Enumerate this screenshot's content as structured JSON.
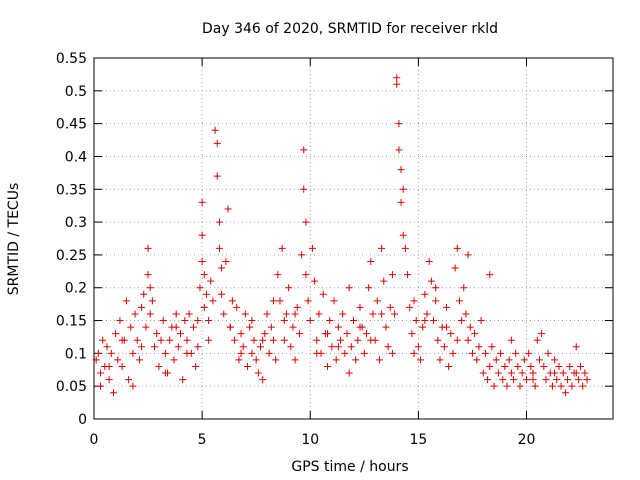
{
  "chart_data": {
    "type": "scatter",
    "title": "Day 346 of 2020, SRMTID for receiver rkld",
    "xlabel": "GPS time / hours",
    "ylabel": "SRMTID / TECUs",
    "xlim": [
      0,
      24
    ],
    "ylim": [
      0,
      0.55
    ],
    "xticks": [
      0,
      5,
      10,
      15,
      20
    ],
    "xtick_labels": [
      "0",
      "5",
      "10",
      "15",
      "20"
    ],
    "yticks": [
      0,
      0.05,
      0.1,
      0.15,
      0.2,
      0.25,
      0.3,
      0.35,
      0.4,
      0.45,
      0.5,
      0.55
    ],
    "ytick_labels": [
      "0",
      "0.05",
      "0.1",
      "0.15",
      "0.2",
      "0.25",
      "0.3",
      "0.35",
      "0.4",
      "0.45",
      "0.5",
      "0.55"
    ],
    "grid": true,
    "marker": "+",
    "series_color": "#e00000",
    "series": [
      {
        "name": "SRMTID",
        "x": [
          0.1,
          0.2,
          0.3,
          0.4,
          0.5,
          0.6,
          0.7,
          0.8,
          0.9,
          1.0,
          1.1,
          1.2,
          1.3,
          1.4,
          1.5,
          1.6,
          1.7,
          1.8,
          1.9,
          2.0,
          2.1,
          2.2,
          2.3,
          2.4,
          2.5,
          2.5,
          2.6,
          2.6,
          2.7,
          2.8,
          2.9,
          3.0,
          3.1,
          3.2,
          3.3,
          3.4,
          3.5,
          3.6,
          3.7,
          3.8,
          3.9,
          4.0,
          4.1,
          4.2,
          4.3,
          4.4,
          4.5,
          4.6,
          4.7,
          4.8,
          4.9,
          5.0,
          5.0,
          5.0,
          5.1,
          5.1,
          5.2,
          5.3,
          5.4,
          5.5,
          5.6,
          5.7,
          5.7,
          5.8,
          5.8,
          5.9,
          5.9,
          6.0,
          6.1,
          6.2,
          6.3,
          6.4,
          6.5,
          6.6,
          6.7,
          6.8,
          6.9,
          7.0,
          7.1,
          7.2,
          7.3,
          7.4,
          7.5,
          7.6,
          7.7,
          7.8,
          7.9,
          8.0,
          8.1,
          8.2,
          8.3,
          8.4,
          8.5,
          8.6,
          8.7,
          8.8,
          8.8,
          8.9,
          9.0,
          9.1,
          9.2,
          9.3,
          9.4,
          9.5,
          9.6,
          9.7,
          9.7,
          9.8,
          9.8,
          9.9,
          10.0,
          10.1,
          10.2,
          10.3,
          10.4,
          10.5,
          10.6,
          10.7,
          10.8,
          10.9,
          11.0,
          11.1,
          11.2,
          11.3,
          11.4,
          11.5,
          11.6,
          11.7,
          11.8,
          11.9,
          12.0,
          12.1,
          12.2,
          12.3,
          12.4,
          12.5,
          12.6,
          12.7,
          12.8,
          12.9,
          13.0,
          13.1,
          13.2,
          13.3,
          13.4,
          13.5,
          13.6,
          13.7,
          13.8,
          13.9,
          14.0,
          14.0,
          14.1,
          14.1,
          14.2,
          14.2,
          14.3,
          14.3,
          14.4,
          14.5,
          14.6,
          14.7,
          14.8,
          14.9,
          15.0,
          15.1,
          15.2,
          15.3,
          15.4,
          15.5,
          15.6,
          15.7,
          15.8,
          15.9,
          16.0,
          16.1,
          16.2,
          16.3,
          16.4,
          16.5,
          16.6,
          16.7,
          16.8,
          16.9,
          17.0,
          17.1,
          17.2,
          17.3,
          17.4,
          17.5,
          17.6,
          17.7,
          17.8,
          17.9,
          18.0,
          18.1,
          18.2,
          18.3,
          18.4,
          18.5,
          18.6,
          18.7,
          18.8,
          18.9,
          19.0,
          19.1,
          19.2,
          19.3,
          19.4,
          19.5,
          19.6,
          19.7,
          19.8,
          19.9,
          20.0,
          20.1,
          20.2,
          20.3,
          20.4,
          20.5,
          20.6,
          20.7,
          20.8,
          20.9,
          21.0,
          21.1,
          21.2,
          21.3,
          21.4,
          21.5,
          21.6,
          21.7,
          21.8,
          21.9,
          22.0,
          22.1,
          22.2,
          22.3,
          22.4,
          22.5,
          22.6,
          22.7,
          22.8,
          0.3,
          0.7,
          1.3,
          1.8,
          2.2,
          3.3,
          3.8,
          4.3,
          4.8,
          5.3,
          6.3,
          6.8,
          7.3,
          7.8,
          8.3,
          9.3,
          10.3,
          10.8,
          11.3,
          11.8,
          12.3,
          12.8,
          13.3,
          13.8,
          14.8,
          15.3,
          15.8,
          16.3,
          16.8,
          17.3,
          18.3,
          19.3,
          20.3,
          21.3,
          22.3
        ],
        "values": [
          0.09,
          0.1,
          0.07,
          0.12,
          0.08,
          0.11,
          0.06,
          0.1,
          0.04,
          0.13,
          0.09,
          0.15,
          0.08,
          0.12,
          0.18,
          0.06,
          0.14,
          0.1,
          0.16,
          0.12,
          0.09,
          0.17,
          0.19,
          0.14,
          0.26,
          0.22,
          0.2,
          0.16,
          0.18,
          0.11,
          0.13,
          0.08,
          0.12,
          0.15,
          0.1,
          0.07,
          0.12,
          0.14,
          0.09,
          0.16,
          0.11,
          0.13,
          0.06,
          0.15,
          0.12,
          0.16,
          0.1,
          0.14,
          0.08,
          0.11,
          0.2,
          0.28,
          0.33,
          0.24,
          0.22,
          0.17,
          0.19,
          0.15,
          0.21,
          0.18,
          0.44,
          0.37,
          0.42,
          0.3,
          0.26,
          0.23,
          0.19,
          0.16,
          0.24,
          0.32,
          0.14,
          0.18,
          0.12,
          0.17,
          0.09,
          0.13,
          0.11,
          0.16,
          0.08,
          0.14,
          0.1,
          0.12,
          0.09,
          0.07,
          0.11,
          0.06,
          0.13,
          0.16,
          0.1,
          0.14,
          0.12,
          0.09,
          0.22,
          0.18,
          0.26,
          0.15,
          0.12,
          0.16,
          0.2,
          0.11,
          0.14,
          0.09,
          0.17,
          0.13,
          0.25,
          0.41,
          0.35,
          0.3,
          0.22,
          0.18,
          0.15,
          0.26,
          0.21,
          0.12,
          0.16,
          0.1,
          0.19,
          0.13,
          0.08,
          0.15,
          0.11,
          0.18,
          0.09,
          0.14,
          0.12,
          0.16,
          0.1,
          0.13,
          0.07,
          0.11,
          0.15,
          0.09,
          0.12,
          0.17,
          0.14,
          0.1,
          0.13,
          0.2,
          0.24,
          0.16,
          0.12,
          0.18,
          0.09,
          0.26,
          0.21,
          0.14,
          0.11,
          0.17,
          0.22,
          0.16,
          0.51,
          0.52,
          0.45,
          0.41,
          0.38,
          0.33,
          0.35,
          0.28,
          0.26,
          0.22,
          0.17,
          0.13,
          0.1,
          0.15,
          0.11,
          0.09,
          0.14,
          0.19,
          0.16,
          0.24,
          0.21,
          0.15,
          0.18,
          0.12,
          0.09,
          0.14,
          0.11,
          0.17,
          0.08,
          0.13,
          0.1,
          0.23,
          0.26,
          0.18,
          0.15,
          0.2,
          0.16,
          0.12,
          0.14,
          0.1,
          0.13,
          0.09,
          0.11,
          0.15,
          0.07,
          0.1,
          0.06,
          0.08,
          0.11,
          0.05,
          0.09,
          0.07,
          0.1,
          0.06,
          0.08,
          0.05,
          0.09,
          0.07,
          0.06,
          0.1,
          0.08,
          0.05,
          0.07,
          0.09,
          0.06,
          0.1,
          0.08,
          0.07,
          0.05,
          0.12,
          0.09,
          0.13,
          0.08,
          0.06,
          0.1,
          0.07,
          0.05,
          0.09,
          0.06,
          0.08,
          0.05,
          0.07,
          0.04,
          0.06,
          0.08,
          0.05,
          0.07,
          0.11,
          0.06,
          0.08,
          0.05,
          0.07,
          0.06,
          0.05,
          0.08,
          0.12,
          0.05,
          0.11,
          0.07,
          0.14,
          0.1,
          0.15,
          0.12,
          0.14,
          0.1,
          0.15,
          0.12,
          0.18,
          0.16,
          0.1,
          0.13,
          0.11,
          0.2,
          0.14,
          0.12,
          0.16,
          0.1,
          0.18,
          0.15,
          0.2,
          0.14,
          0.12,
          0.25,
          0.22,
          0.12,
          0.06,
          0.07,
          0.07
        ]
      }
    ]
  }
}
